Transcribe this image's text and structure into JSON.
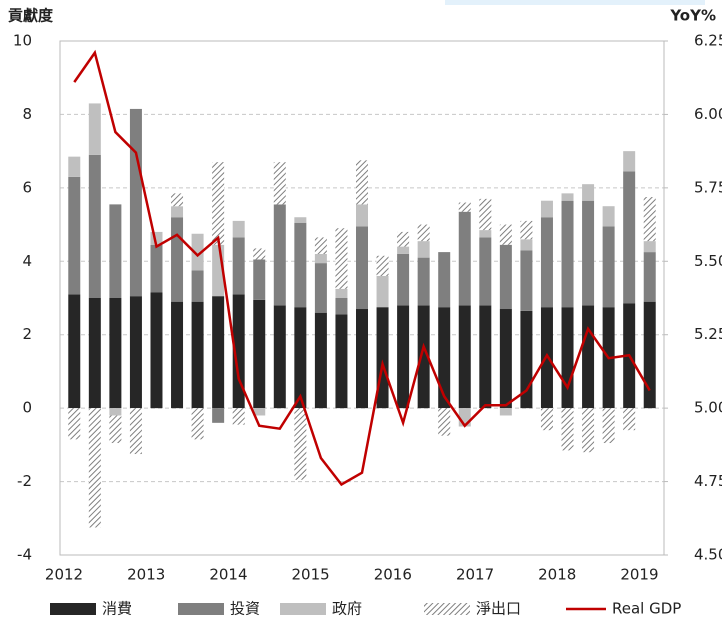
{
  "chart_data": {
    "type": "stacked_bar_line",
    "y_label": "貢獻度",
    "y2_label": "YoY%",
    "categories": [
      "2012",
      null,
      null,
      null,
      "2013",
      null,
      null,
      null,
      "2014",
      null,
      null,
      null,
      "2015",
      null,
      null,
      null,
      "2016",
      null,
      null,
      null,
      "2017",
      null,
      null,
      null,
      "2018",
      null,
      null,
      null,
      "2019"
    ],
    "ylim": [
      -4,
      10
    ],
    "yticks": [
      -4,
      -2,
      0,
      2,
      4,
      6,
      8,
      10
    ],
    "y2lim": [
      4.5,
      6.25
    ],
    "y2ticks": [
      {
        "value": 4.5,
        "label": "4.50"
      },
      4.75,
      {
        "value": 5,
        "label": "5.00"
      },
      5.25,
      {
        "value": 5.5,
        "label": "5.50"
      },
      5.75,
      {
        "value": 6,
        "label": "6.00"
      },
      6.25
    ],
    "grid": true,
    "legend": "bottom",
    "series": [
      {
        "name": "消費",
        "color": "#262626",
        "values": [
          3.1,
          3.0,
          3.0,
          3.05,
          3.15,
          2.9,
          2.9,
          3.05,
          3.1,
          2.95,
          2.8,
          2.75,
          2.6,
          2.55,
          2.7,
          2.75,
          2.8,
          2.8,
          2.75,
          2.8,
          2.8,
          2.7,
          2.65,
          2.75,
          2.75,
          2.8,
          2.75,
          2.85,
          2.9
        ]
      },
      {
        "name": "投資",
        "color": "#7f7f7f",
        "values": [
          3.2,
          3.9,
          2.55,
          5.1,
          1.3,
          2.3,
          0.85,
          -0.4,
          1.55,
          1.1,
          2.75,
          2.3,
          1.35,
          0.45,
          2.25,
          0,
          1.4,
          1.3,
          1.5,
          2.55,
          1.85,
          1.75,
          1.65,
          2.45,
          2.9,
          2.85,
          2.2,
          3.6,
          1.35
        ]
      },
      {
        "name": "政府",
        "color": "#bfbfbf",
        "values": [
          0.55,
          1.4,
          -0.2,
          0,
          0.35,
          0.3,
          1.0,
          1.4,
          0.45,
          -0.2,
          0,
          0.15,
          0.25,
          0.25,
          0.6,
          0.85,
          0.2,
          0.45,
          0,
          -0.5,
          0.2,
          -0.2,
          0.3,
          0.45,
          0.2,
          0.45,
          0.55,
          0.55,
          0.3
        ]
      },
      {
        "name": "淨出口",
        "color": "#7f7f7f",
        "hatch": true,
        "values": [
          -0.85,
          -3.25,
          -0.75,
          -1.25,
          0,
          0.35,
          -0.85,
          2.25,
          -0.45,
          0.3,
          1.15,
          -1.95,
          0.45,
          1.65,
          1.2,
          0.55,
          0.4,
          0.45,
          -0.75,
          0.25,
          0.85,
          0.55,
          0.5,
          -0.6,
          -1.15,
          -1.2,
          -0.95,
          -0.6,
          1.2
        ]
      },
      {
        "name": "Real GDP",
        "color": "#c00000",
        "axis": "y2",
        "type": "line",
        "values": [
          6.11,
          6.21,
          5.94,
          5.87,
          5.55,
          5.59,
          5.52,
          5.58,
          5.1,
          4.94,
          4.93,
          5.04,
          4.83,
          4.74,
          4.78,
          5.15,
          4.95,
          5.21,
          5.04,
          4.94,
          5.01,
          5.01,
          5.06,
          5.18,
          5.07,
          5.27,
          5.17,
          5.18,
          5.06
        ]
      }
    ]
  }
}
